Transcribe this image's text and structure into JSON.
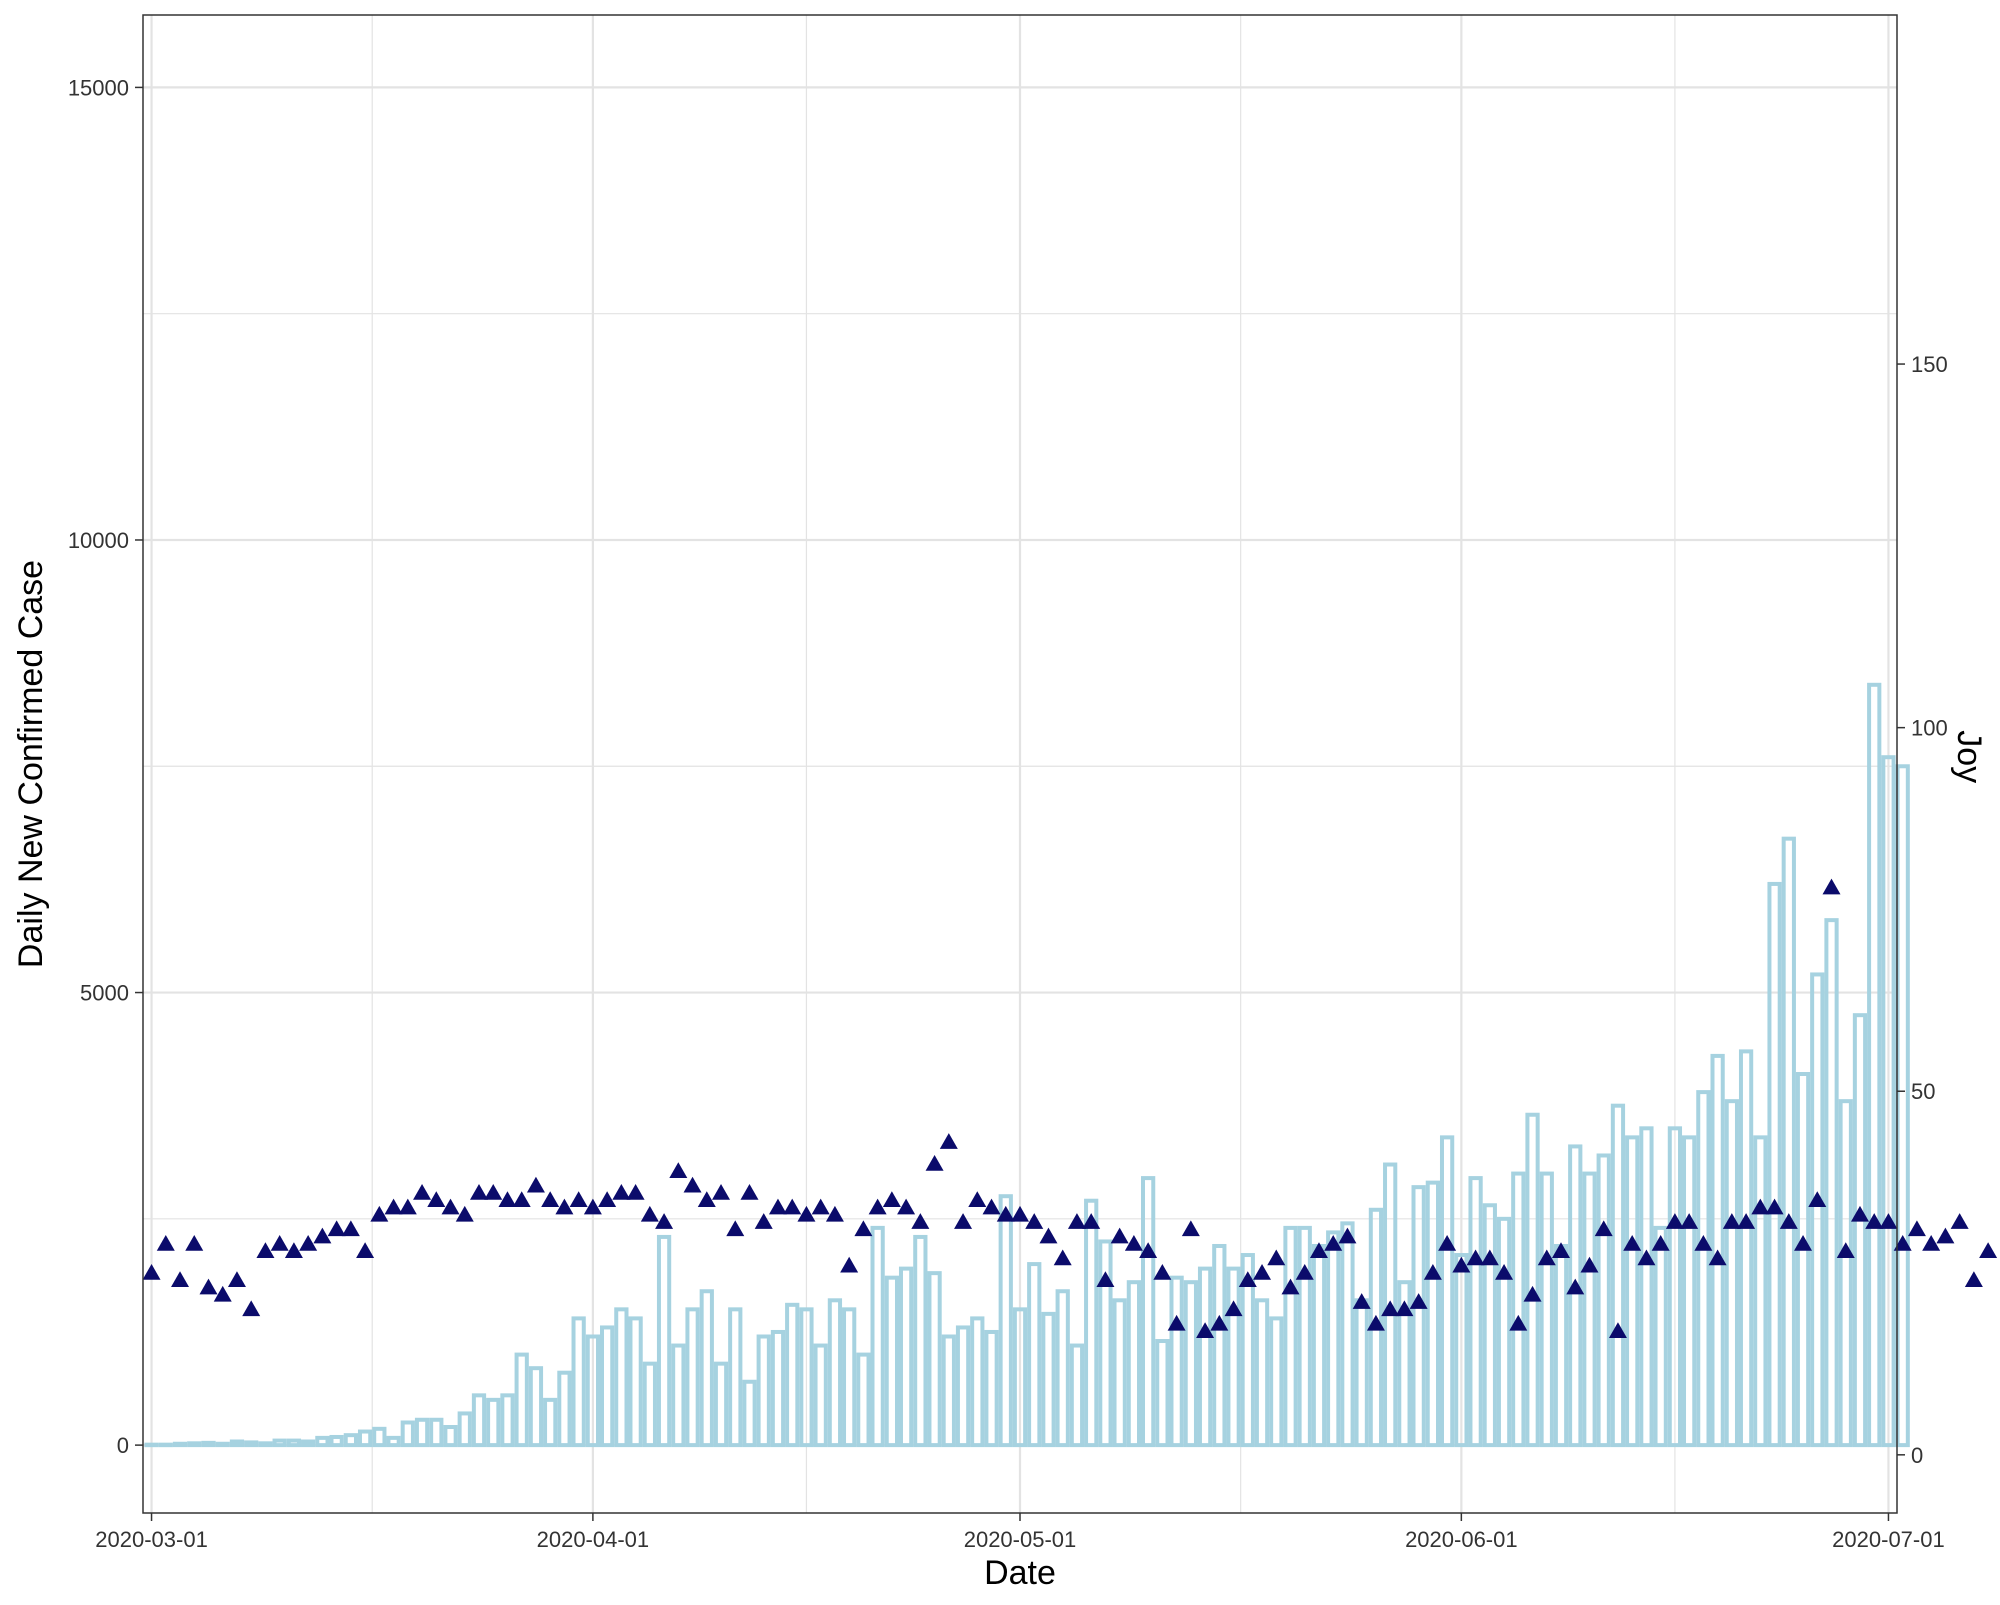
{
  "chart_data": {
    "type": "bar",
    "title": "",
    "xlabel": "Date",
    "ylabel_left": "Daily New Confirmed Case",
    "ylabel_right": "Joy",
    "x_range": [
      "2020-03-01",
      "2020-07-01"
    ],
    "x_ticks": [
      "2020-03-01",
      "2020-04-01",
      "2020-05-01",
      "2020-06-01",
      "2020-07-01"
    ],
    "ylim_left": [
      -750,
      15800
    ],
    "y_ticks_left": [
      0,
      5000,
      10000,
      15000
    ],
    "ylim_right": [
      -8,
      198
    ],
    "y_ticks_right": [
      0,
      50,
      100,
      150
    ],
    "grid": true,
    "legend": "none",
    "colors": {
      "bars": "#a6d2e0",
      "triangles": "#0b0b6b",
      "grid": "#e3e3e3",
      "axis": "#333333",
      "text": "#000000",
      "tick_text": "#333333"
    },
    "series": [
      {
        "type": "bar",
        "axis": "left",
        "start_date": "2020-03-01",
        "values": [
          5,
          5,
          15,
          20,
          25,
          15,
          40,
          30,
          20,
          50,
          50,
          40,
          80,
          90,
          110,
          150,
          180,
          80,
          250,
          280,
          280,
          200,
          350,
          550,
          500,
          550,
          1000,
          850,
          500,
          800,
          1400,
          1200,
          1300,
          1500,
          1400,
          900,
          2300,
          1100,
          1500,
          1700,
          900,
          1500,
          700,
          1200,
          1250,
          1550,
          1500,
          1100,
          1600,
          1500,
          1000,
          2400,
          1850,
          1950,
          2300,
          1900,
          1200,
          1300,
          1400,
          1250,
          2750,
          1500,
          2000,
          1450,
          1700,
          1100,
          2700,
          2250,
          1600,
          1800,
          2950,
          1150,
          1850,
          1800,
          1950,
          2200,
          1950,
          2100,
          1600,
          1400,
          2400,
          2400,
          2200,
          2350,
          2450,
          1600,
          2600,
          3100,
          1800,
          2850,
          2900,
          3400,
          2100,
          2950,
          2650,
          2500,
          3000,
          3650,
          3000,
          2200,
          3300,
          3000,
          3200,
          3750,
          3400,
          3500,
          2400,
          3500,
          3400,
          3900,
          4300,
          3800,
          4350,
          3400,
          6200,
          6700,
          4100,
          5200,
          5800,
          3800,
          4750,
          8400,
          7600,
          7500
        ]
      },
      {
        "type": "scatter",
        "marker": "triangle",
        "axis": "right",
        "start_date": "2020-03-01",
        "values": [
          25,
          29,
          24,
          29,
          23,
          22,
          24,
          20,
          28,
          29,
          28,
          29,
          30,
          31,
          31,
          28,
          33,
          34,
          34,
          36,
          35,
          34,
          33,
          36,
          36,
          35,
          35,
          37,
          35,
          34,
          35,
          34,
          35,
          36,
          36,
          33,
          32,
          39,
          37,
          35,
          36,
          31,
          36,
          32,
          34,
          34,
          33,
          34,
          33,
          26,
          31,
          34,
          35,
          34,
          32,
          40,
          43,
          32,
          35,
          34,
          33,
          33,
          32,
          30,
          27,
          32,
          32,
          24,
          30,
          29,
          28,
          25,
          18,
          31,
          17,
          18,
          20,
          24,
          25,
          27,
          23,
          25,
          28,
          29,
          30,
          21,
          18,
          20,
          20,
          21,
          25,
          29,
          26,
          27,
          27,
          25,
          18,
          22,
          27,
          28,
          23,
          26,
          31,
          17,
          29,
          27,
          29,
          32,
          32,
          29,
          27,
          32,
          32,
          34,
          34,
          32,
          29,
          35,
          78,
          28,
          33,
          32,
          32,
          29,
          31,
          29,
          30,
          32,
          24,
          28
        ]
      }
    ]
  }
}
